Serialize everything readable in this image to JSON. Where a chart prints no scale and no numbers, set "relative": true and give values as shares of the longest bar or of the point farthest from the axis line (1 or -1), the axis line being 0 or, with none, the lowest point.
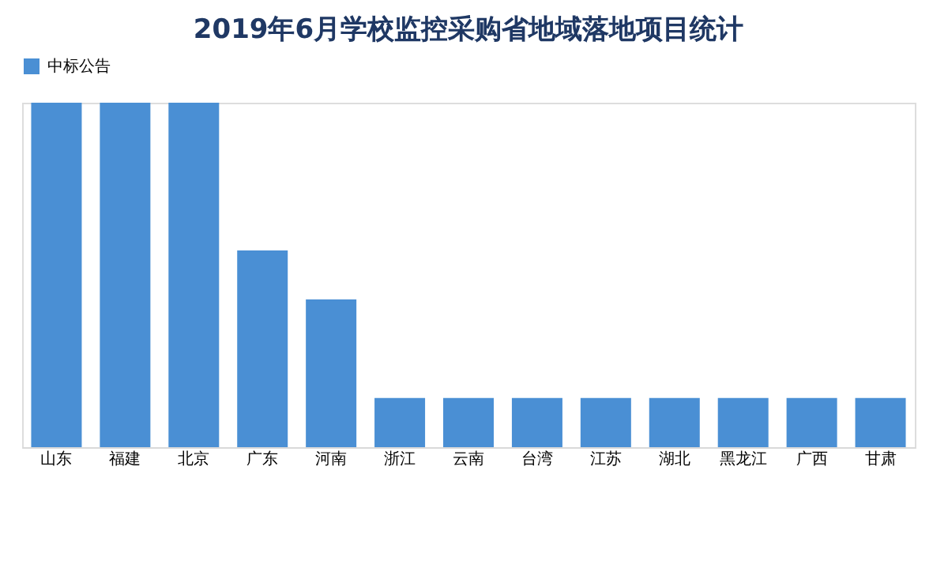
{
  "chart_data": {
    "type": "bar",
    "title": "2019年6月学校监控采购省地域落地项目统计",
    "categories": [
      "山东",
      "福建",
      "北京",
      "广东",
      "河南",
      "浙江",
      "云南",
      "台湾",
      "江苏",
      "湖北",
      "黑龙江",
      "广西",
      "甘肃"
    ],
    "series": [
      {
        "name": "中标公告",
        "color": "#4a8fd4",
        "values": [
          1,
          1,
          1,
          0.571,
          0.429,
          0.143,
          0.143,
          0.143,
          0.143,
          0.143,
          0.143,
          0.143,
          0.143
        ]
      }
    ],
    "relative": true,
    "legend": "top",
    "grid": false
  }
}
